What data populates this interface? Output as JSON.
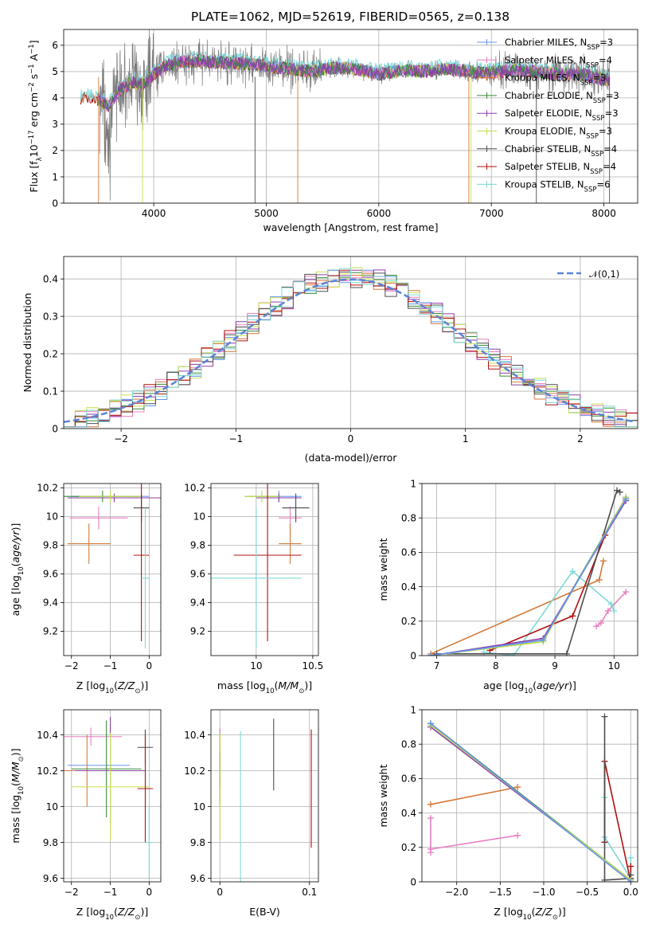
{
  "title": "PLATE=1062, MJD=52619, FIBERID=0565, z=0.138",
  "models": [
    {
      "name": "Chabrier MILES, N_SSP=3",
      "label": "Chabrier MILES, N",
      "sub": "SSP",
      "n": "=3",
      "color": "#6495ed"
    },
    {
      "name": "Salpeter MILES, N_SSP=4",
      "label": "Salpeter MILES, N",
      "sub": "SSP",
      "n": "=4",
      "color": "#e87fc0"
    },
    {
      "name": "Kroupa MILES, N_SSP=3",
      "label": "Kroupa MILES, N",
      "sub": "SSP",
      "n": "=3",
      "color": "#d4793a"
    },
    {
      "name": "Chabrier ELODIE, N_SSP=3",
      "label": "Chabrier ELODIE, N",
      "sub": "SSP",
      "n": "=3",
      "color": "#3a8a3a"
    },
    {
      "name": "Salpeter ELODIE, N_SSP=3",
      "label": "Salpeter ELODIE, N",
      "sub": "SSP",
      "n": "=3",
      "color": "#8e3ea8"
    },
    {
      "name": "Kroupa ELODIE, N_SSP=3",
      "label": "Kroupa ELODIE, N",
      "sub": "SSP",
      "n": "=3",
      "color": "#c6e04e"
    },
    {
      "name": "Chabrier STELIB, N_SSP=4",
      "label": "Chabrier STELIB, N",
      "sub": "SSP",
      "n": "=4",
      "color": "#4d4d4d"
    },
    {
      "name": "Salpeter STELIB, N_SSP=4",
      "label": "Salpeter STELIB, N",
      "sub": "SSP",
      "n": "=4",
      "color": "#b01010"
    },
    {
      "name": "Kroupa STELIB, N_SSP=6",
      "label": "Kroupa STELIB, N",
      "sub": "SSP",
      "n": "=6",
      "color": "#7fd8d8"
    }
  ],
  "chart_data": [
    {
      "id": "spectrum",
      "type": "line",
      "xlabel": "wavelength [Angstrom, rest frame]",
      "ylabel": "Flux [f_λ 10^-17 erg cm^-2 s^-1 A^-1]",
      "xlim": [
        3200,
        8300
      ],
      "ylim": [
        0,
        6.6
      ],
      "xticks": [
        4000,
        5000,
        6000,
        7000,
        8000
      ],
      "yticks": [
        0,
        1,
        2,
        3,
        4,
        5,
        6
      ],
      "legend": "upper right",
      "continuum_x": [
        3350,
        3500,
        3600,
        3700,
        3800,
        3900,
        4000,
        4100,
        4200,
        4400,
        4600,
        4800,
        5000,
        5200,
        5400,
        5600,
        5800,
        6000,
        6200,
        6400,
        6600,
        6800,
        7000,
        7200,
        7400,
        7600,
        7800,
        8000
      ],
      "continuum_y": [
        4.0,
        3.95,
        3.7,
        4.3,
        4.6,
        4.5,
        4.9,
        5.2,
        5.35,
        5.4,
        5.35,
        5.3,
        5.2,
        5.1,
        5.0,
        5.15,
        5.1,
        4.9,
        5.05,
        5.0,
        5.1,
        5.0,
        4.95,
        5.05,
        5.0,
        4.9,
        4.9,
        4.7
      ],
      "data_range": [
        3500,
        8050
      ]
    },
    {
      "id": "residuals",
      "type": "histogram",
      "xlabel": "(data-model)/error",
      "ylabel": "Normed distribution",
      "xlim": [
        -2.5,
        2.5
      ],
      "ylim": [
        0,
        0.46
      ],
      "xticks": [
        -2,
        -1,
        0,
        1,
        2
      ],
      "yticks": [
        0.0,
        0.1,
        0.2,
        0.3,
        0.4
      ],
      "bin_width": 0.1,
      "reference": {
        "name": "𝒩(0,1)",
        "mean": 0,
        "sigma": 1,
        "color": "#5b84d6"
      },
      "legend": "upper right"
    },
    {
      "id": "age_vs_Z",
      "type": "errorbar",
      "xlabel": "Z [log10(Z/Z⊙)]",
      "ylabel": "age  [log10(age/yr)]",
      "xlim": [
        -2.2,
        0.3
      ],
      "ylim": [
        9.03,
        10.23
      ],
      "xticks": [
        -2,
        -1,
        0
      ],
      "yticks": [
        9.2,
        9.4,
        9.6,
        9.8,
        10.0,
        10.2
      ],
      "points": [
        {
          "m": 0,
          "x": -1.0,
          "xerr": 1.0,
          "y": 10.14,
          "yerr": 0.04
        },
        {
          "m": 1,
          "x": -1.3,
          "xerr": 0.75,
          "y": 9.99,
          "yerr": 0.08
        },
        {
          "m": 2,
          "x": -1.55,
          "xerr": 0.55,
          "y": 9.81,
          "yerr": 0.14
        },
        {
          "m": 3,
          "x": -1.2,
          "xerr": 1.0,
          "y": 10.14,
          "yerr": 0.04
        },
        {
          "m": 4,
          "x": -0.9,
          "xerr": 1.2,
          "y": 10.13,
          "yerr": 0.03
        },
        {
          "m": 5,
          "x": -1.0,
          "xerr": 0.8,
          "y": 10.14,
          "yerr": 0.04
        },
        {
          "m": 6,
          "x": -0.2,
          "xerr": 0.2,
          "y": 10.06,
          "yerr": 0.1
        },
        {
          "m": 7,
          "x": -0.2,
          "xerr": 0.2,
          "y": 9.73,
          "yerr": 0.6
        },
        {
          "m": 8,
          "x": -0.1,
          "xerr": 0.1,
          "y": 9.57,
          "yerr": 0.49
        }
      ]
    },
    {
      "id": "age_vs_mass",
      "type": "errorbar",
      "xlabel": "mass [log10(M/M⊙)]",
      "ylabel": "",
      "xlim": [
        9.6,
        10.55
      ],
      "ylim": [
        9.03,
        10.23
      ],
      "xticks": [
        10.0,
        10.5
      ],
      "yticks": [
        9.2,
        9.4,
        9.6,
        9.8,
        10.0,
        10.2
      ],
      "points": [
        {
          "m": 0,
          "x": 10.2,
          "xerr": 0.2,
          "y": 10.14,
          "yerr": 0.04
        },
        {
          "m": 1,
          "x": 10.3,
          "xerr": 0.1,
          "y": 9.99,
          "yerr": 0.08
        },
        {
          "m": 2,
          "x": 10.3,
          "xerr": 0.1,
          "y": 9.81,
          "yerr": 0.14
        },
        {
          "m": 3,
          "x": 10.05,
          "xerr": 0.15,
          "y": 10.14,
          "yerr": 0.04
        },
        {
          "m": 4,
          "x": 10.2,
          "xerr": 0.2,
          "y": 10.13,
          "yerr": 0.03
        },
        {
          "m": 5,
          "x": 10.05,
          "xerr": 0.15,
          "y": 10.14,
          "yerr": 0.04
        },
        {
          "m": 6,
          "x": 10.35,
          "xerr": 0.12,
          "y": 10.06,
          "yerr": 0.1
        },
        {
          "m": 7,
          "x": 10.1,
          "xerr": 0.3,
          "y": 9.73,
          "yerr": 0.6
        },
        {
          "m": 8,
          "x": 10.0,
          "xerr": 0.4,
          "y": 9.57,
          "yerr": 0.49
        }
      ]
    },
    {
      "id": "massweight_vs_age",
      "type": "line",
      "xlabel": "age  [log10(age/yr)]",
      "ylabel": "mass weight",
      "xlim": [
        6.75,
        10.4
      ],
      "ylim": [
        0,
        1.0
      ],
      "xticks": [
        7,
        8,
        9,
        10
      ],
      "yticks": [
        0.0,
        0.2,
        0.4,
        0.6,
        0.8,
        1.0
      ],
      "series": [
        {
          "m": 2,
          "x": [
            6.9,
            9.75,
            9.82
          ],
          "y": [
            0.01,
            0.44,
            0.55
          ]
        },
        {
          "m": 1,
          "x": [
            9.7,
            9.78,
            9.9,
            10.2
          ],
          "y": [
            0.17,
            0.19,
            0.26,
            0.37
          ]
        },
        {
          "m": 8,
          "x": [
            7.8,
            8.3,
            9.3,
            9.95,
            10.0
          ],
          "y": [
            0.02,
            0.0,
            0.49,
            0.3,
            0.26
          ]
        },
        {
          "m": 7,
          "x": [
            7.9,
            9.3,
            9.85,
            10.2
          ],
          "y": [
            0.03,
            0.23,
            0.7,
            0.91
          ]
        },
        {
          "m": 6,
          "x": [
            7.0,
            9.2,
            10.05,
            10.1
          ],
          "y": [
            0.01,
            0.01,
            0.96,
            0.95
          ]
        },
        {
          "m": 3,
          "x": [
            6.9,
            8.8,
            10.2
          ],
          "y": [
            0.0,
            0.09,
            0.92
          ]
        },
        {
          "m": 4,
          "x": [
            6.9,
            8.8,
            10.2
          ],
          "y": [
            0.0,
            0.1,
            0.9
          ]
        },
        {
          "m": 5,
          "x": [
            6.9,
            8.8,
            10.2
          ],
          "y": [
            0.0,
            0.08,
            0.92
          ]
        },
        {
          "m": 0,
          "x": [
            6.9,
            8.8,
            10.2
          ],
          "y": [
            0.0,
            0.09,
            0.91
          ]
        }
      ]
    },
    {
      "id": "mass_vs_Z",
      "type": "errorbar",
      "xlabel": "Z [log10(Z/Z⊙)]",
      "ylabel": "mass [log10(M/M⊙)]",
      "xlim": [
        -2.2,
        0.3
      ],
      "ylim": [
        9.58,
        10.54
      ],
      "xticks": [
        -2,
        -1,
        0
      ],
      "yticks": [
        9.6,
        9.8,
        10.0,
        10.2,
        10.4
      ],
      "points": [
        {
          "m": 0,
          "x": -1.3,
          "xerr": 0.8,
          "y": 10.23,
          "yerr": 0.0
        },
        {
          "m": 1,
          "x": -1.5,
          "xerr": 0.8,
          "y": 10.39,
          "yerr": 0.05
        },
        {
          "m": 2,
          "x": -1.6,
          "xerr": 0.6,
          "y": 10.2,
          "yerr": 0.2
        },
        {
          "m": 3,
          "x": -1.1,
          "xerr": 0.9,
          "y": 10.21,
          "yerr": 0.27
        },
        {
          "m": 4,
          "x": -1.0,
          "xerr": 0.9,
          "y": 10.2,
          "yerr": 0.3
        },
        {
          "m": 5,
          "x": -1.0,
          "xerr": 1.0,
          "y": 10.11,
          "yerr": 0.3
        },
        {
          "m": 6,
          "x": -0.1,
          "xerr": 0.2,
          "y": 10.33,
          "yerr": 0.1
        },
        {
          "m": 7,
          "x": -0.1,
          "xerr": 0.2,
          "y": 10.1,
          "yerr": 0.3
        },
        {
          "m": 8,
          "x": 0.0,
          "xerr": 0.1,
          "y": 9.8,
          "yerr": 0.2
        }
      ]
    },
    {
      "id": "mass_vs_ebv",
      "type": "errorbar",
      "xlabel": "E(B-V)",
      "ylabel": "",
      "xlim": [
        -0.01,
        0.11
      ],
      "ylim": [
        9.58,
        10.54
      ],
      "xticks": [
        0.0,
        0.1
      ],
      "yticks": [
        9.6,
        9.8,
        10.0,
        10.2,
        10.4
      ],
      "points": [
        {
          "m": 0,
          "x": 0.0,
          "xerr": 0,
          "y": 10.23,
          "yerr": 0.2
        },
        {
          "m": 1,
          "x": 0.0,
          "xerr": 0,
          "y": 10.39,
          "yerr": 0.05
        },
        {
          "m": 2,
          "x": 0.0,
          "xerr": 0,
          "y": 10.2,
          "yerr": 0.2
        },
        {
          "m": 3,
          "x": 0.0,
          "xerr": 0,
          "y": 10.21,
          "yerr": 0.1
        },
        {
          "m": 4,
          "x": 0.0,
          "xerr": 0,
          "y": 10.2,
          "yerr": 0.1
        },
        {
          "m": 5,
          "x": 0.0,
          "xerr": 0,
          "y": 10.11,
          "yerr": 0.3
        },
        {
          "m": 6,
          "x": 0.06,
          "xerr": 0,
          "y": 10.29,
          "yerr": 0.2
        },
        {
          "m": 7,
          "x": 0.102,
          "xerr": 0,
          "y": 10.1,
          "yerr": 0.33
        },
        {
          "m": 8,
          "x": 0.023,
          "xerr": 0,
          "y": 10.0,
          "yerr": 0.42
        }
      ]
    },
    {
      "id": "massweight_vs_Z",
      "type": "line",
      "xlabel": "Z [log10(Z/Z⊙)]",
      "ylabel": "mass weight",
      "xlim": [
        -2.4,
        0.08
      ],
      "ylim": [
        0,
        1.0
      ],
      "xticks": [
        -2.0,
        -1.5,
        -1.0,
        -0.5,
        0.0
      ],
      "yticks": [
        0.0,
        0.2,
        0.4,
        0.6,
        0.8,
        1.0
      ],
      "series": [
        {
          "m": 2,
          "x": [
            -2.3,
            -1.3
          ],
          "y": [
            0.45,
            0.55
          ]
        },
        {
          "m": 1,
          "x": [
            -2.3,
            -2.3,
            -2.3,
            -1.3
          ],
          "y": [
            0.37,
            0.17,
            0.19,
            0.27
          ]
        },
        {
          "m": 8,
          "x": [
            -0.3,
            -0.3,
            0.0,
            0.0
          ],
          "y": [
            0.49,
            0.26,
            0.02,
            0.14
          ]
        },
        {
          "m": 7,
          "x": [
            -0.3,
            -0.3,
            0.0,
            0.0
          ],
          "y": [
            0.23,
            0.7,
            0.0,
            0.09
          ]
        },
        {
          "m": 6,
          "x": [
            -0.3,
            -0.3,
            0.0,
            0.0
          ],
          "y": [
            0.96,
            0.01,
            0.02,
            0.04
          ]
        },
        {
          "m": 3,
          "x": [
            -2.3,
            0.0
          ],
          "y": [
            0.92,
            0.01
          ]
        },
        {
          "m": 4,
          "x": [
            -2.3,
            0.0
          ],
          "y": [
            0.9,
            0.01
          ]
        },
        {
          "m": 5,
          "x": [
            -2.3,
            0.0
          ],
          "y": [
            0.91,
            0.01
          ]
        },
        {
          "m": 0,
          "x": [
            -2.3,
            0.0
          ],
          "y": [
            0.92,
            0.0
          ]
        }
      ]
    }
  ]
}
